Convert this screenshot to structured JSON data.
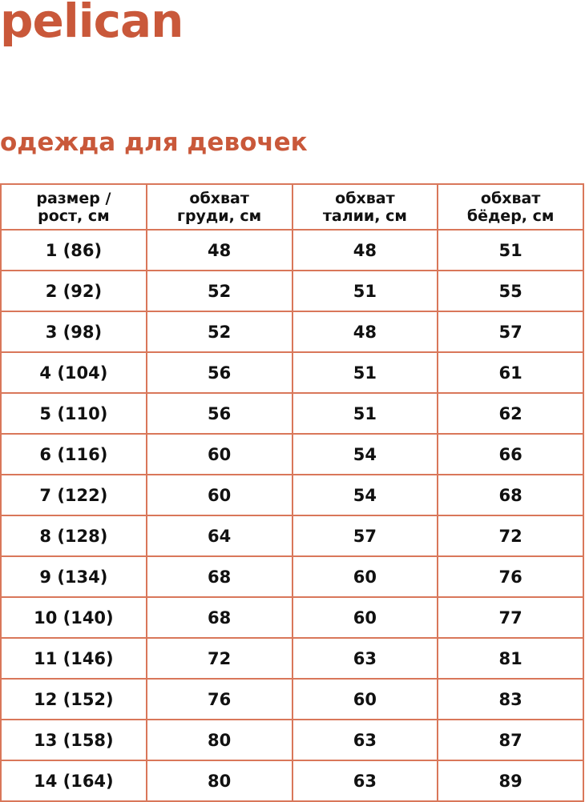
{
  "brand": {
    "logo_text": "pelican",
    "color": "#c9583a"
  },
  "title": "одежда для девочек",
  "table": {
    "headers": [
      [
        "размер /",
        "рост, см"
      ],
      [
        "обхват",
        "груди, см"
      ],
      [
        "обхват",
        "талии, см"
      ],
      [
        "обхват",
        "бёдер, см"
      ]
    ],
    "rows": [
      [
        "1 (86)",
        "48",
        "48",
        "51"
      ],
      [
        "2 (92)",
        "52",
        "51",
        "55"
      ],
      [
        "3 (98)",
        "52",
        "48",
        "57"
      ],
      [
        "4 (104)",
        "56",
        "51",
        "61"
      ],
      [
        "5 (110)",
        "56",
        "51",
        "62"
      ],
      [
        "6 (116)",
        "60",
        "54",
        "66"
      ],
      [
        "7 (122)",
        "60",
        "54",
        "68"
      ],
      [
        "8 (128)",
        "64",
        "57",
        "72"
      ],
      [
        "9 (134)",
        "68",
        "60",
        "76"
      ],
      [
        "10 (140)",
        "68",
        "60",
        "77"
      ],
      [
        "11 (146)",
        "72",
        "63",
        "81"
      ],
      [
        "12 (152)",
        "76",
        "60",
        "83"
      ],
      [
        "13 (158)",
        "80",
        "63",
        "87"
      ],
      [
        "14 (164)",
        "80",
        "63",
        "89"
      ]
    ],
    "border_color": "#d9775a"
  }
}
